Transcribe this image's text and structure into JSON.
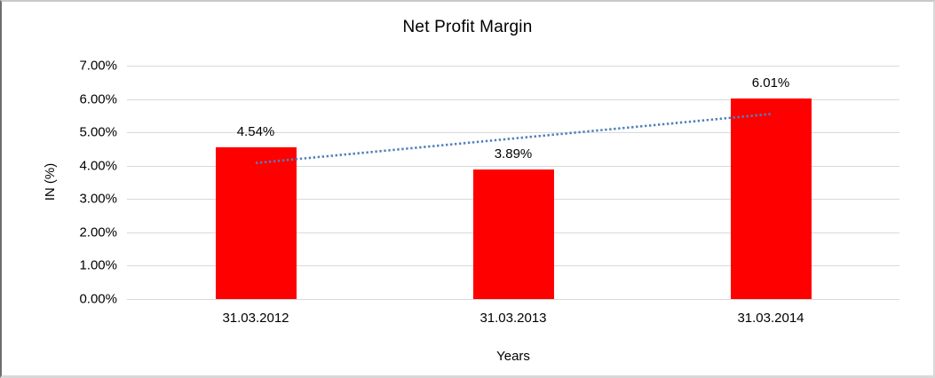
{
  "chart_data": {
    "type": "bar",
    "title": "Net Profit Margin",
    "xlabel": "Years",
    "ylabel": "IN (%)",
    "categories": [
      "31.03.2012",
      "31.03.2013",
      "31.03.2014"
    ],
    "series": [
      {
        "name": "Net Profit Margin",
        "values": [
          4.54,
          3.89,
          6.01
        ]
      }
    ],
    "data_labels": [
      "4.54%",
      "3.89%",
      "6.01%"
    ],
    "y_ticks": [
      {
        "value": 0,
        "label": "0.00%"
      },
      {
        "value": 1,
        "label": "1.00%"
      },
      {
        "value": 2,
        "label": "2.00%"
      },
      {
        "value": 3,
        "label": "3.00%"
      },
      {
        "value": 4,
        "label": "4.00%"
      },
      {
        "value": 5,
        "label": "5.00%"
      },
      {
        "value": 6,
        "label": "6.00%"
      },
      {
        "value": 7,
        "label": "7.00%"
      }
    ],
    "ylim": [
      0,
      7
    ],
    "grid": true,
    "legend": "none",
    "bar_color": "#ff0000",
    "gridline_color": "#d9d9d9",
    "trendline": {
      "style": "dotted",
      "color": "#4f81bd",
      "start_value": 4.08,
      "end_value": 5.55
    }
  }
}
